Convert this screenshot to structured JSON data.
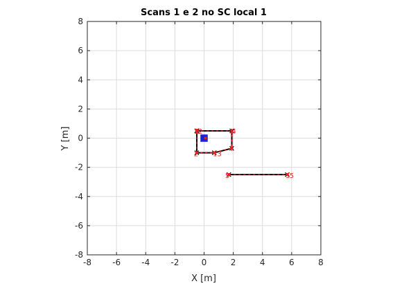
{
  "chart_data": {
    "type": "scatter",
    "title": "Scans 1 e 2 no SC local 1",
    "xlabel": "X [m]",
    "ylabel": "Y [m]",
    "xlim": [
      -8,
      8
    ],
    "ylim": [
      -8,
      8
    ],
    "grid": true,
    "xticks": [
      "-8",
      "-6",
      "-4",
      "-2",
      "0",
      "2",
      "4",
      "6",
      "8"
    ],
    "yticks": [
      "-8",
      "-6",
      "-4",
      "-2",
      "0",
      "2",
      "4",
      "6",
      "8"
    ],
    "colors": {
      "path": "#000000",
      "points": "#e8221e",
      "robot": "#1f1fd6",
      "grid": "#dcdcdc"
    },
    "series": [
      {
        "type": "line",
        "points": [
          [
            -0.5,
            0.5
          ],
          [
            1.9,
            0.5
          ],
          [
            1.9,
            -0.7
          ],
          [
            0.7,
            -1.0
          ],
          [
            -0.5,
            -1.0
          ],
          [
            -0.5,
            0.5
          ]
        ]
      },
      {
        "type": "line",
        "points": [
          [
            1.7,
            -2.5
          ],
          [
            5.7,
            -2.5
          ]
        ]
      }
    ],
    "point_labels": [
      {
        "text": "1",
        "x": -0.55,
        "y": 0.5
      },
      {
        "text": "2",
        "x": -0.45,
        "y": 0.5
      },
      {
        "text": "2",
        "x": -0.25,
        "y": 0.5
      },
      {
        "text": "1",
        "x": 1.9,
        "y": 0.5
      },
      {
        "text": "4",
        "x": 2.05,
        "y": 0.5
      },
      {
        "text": "4",
        "x": 1.85,
        "y": -0.7
      },
      {
        "text": "2",
        "x": -0.55,
        "y": -1.05
      },
      {
        "text": "1",
        "x": 0.75,
        "y": -1.05
      },
      {
        "text": "3",
        "x": 1.05,
        "y": -1.05
      },
      {
        "text": "5",
        "x": 1.6,
        "y": -2.55
      },
      {
        "text": "5",
        "x": 5.75,
        "y": -2.55
      },
      {
        "text": "5",
        "x": 6.0,
        "y": -2.55
      }
    ],
    "robot": {
      "x": 0.0,
      "y": 0.0,
      "size": 0.5
    }
  }
}
